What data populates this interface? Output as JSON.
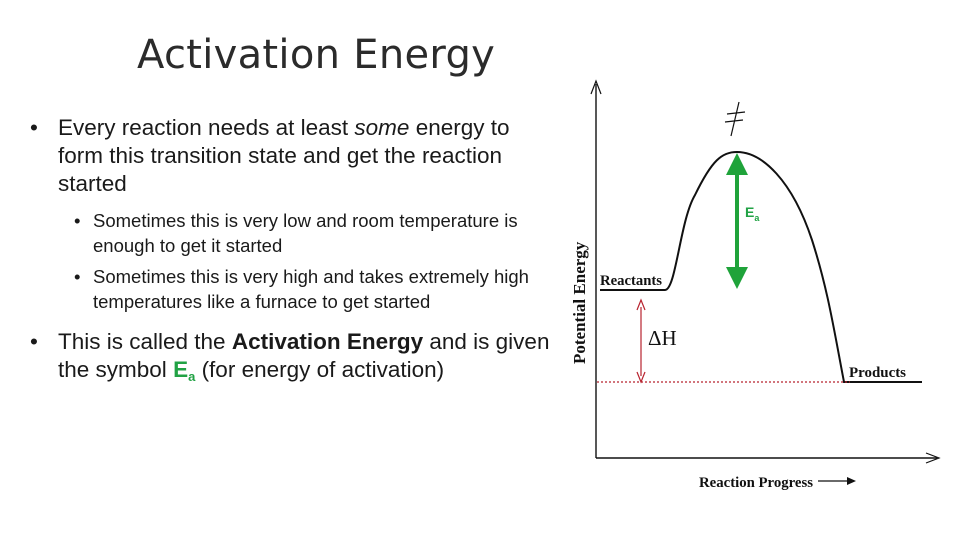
{
  "slide": {
    "title": "Activation Energy",
    "bullets": [
      {
        "pre": "Every reaction needs at least ",
        "em": "some",
        "post": " energy to form this transition state and get the reaction started"
      },
      {
        "text": "Sometimes this is very low and room temperature is enough to get it started"
      },
      {
        "text": "Sometimes this is very high and takes extremely high temperatures like a furnace to get started"
      },
      {
        "pre": "This is called the ",
        "strong": "Activation Energy",
        "mid": " and is given the symbol ",
        "sym_main": "E",
        "sym_sub": "a",
        "post": " (for energy of activation)"
      }
    ]
  },
  "diagram": {
    "y_axis_label": "Potential Energy",
    "x_axis_label": "Reaction Progress",
    "reactants_label": "Reactants",
    "products_label": "Products",
    "delta_h_label": "ΔH",
    "ea_label": "E",
    "ea_sub": "a",
    "transition_mark": "‡",
    "colors": {
      "arrow_green": "#1fa33a",
      "dh_red": "#b8232f",
      "ea_text": "#21a244",
      "line": "#111111"
    }
  }
}
